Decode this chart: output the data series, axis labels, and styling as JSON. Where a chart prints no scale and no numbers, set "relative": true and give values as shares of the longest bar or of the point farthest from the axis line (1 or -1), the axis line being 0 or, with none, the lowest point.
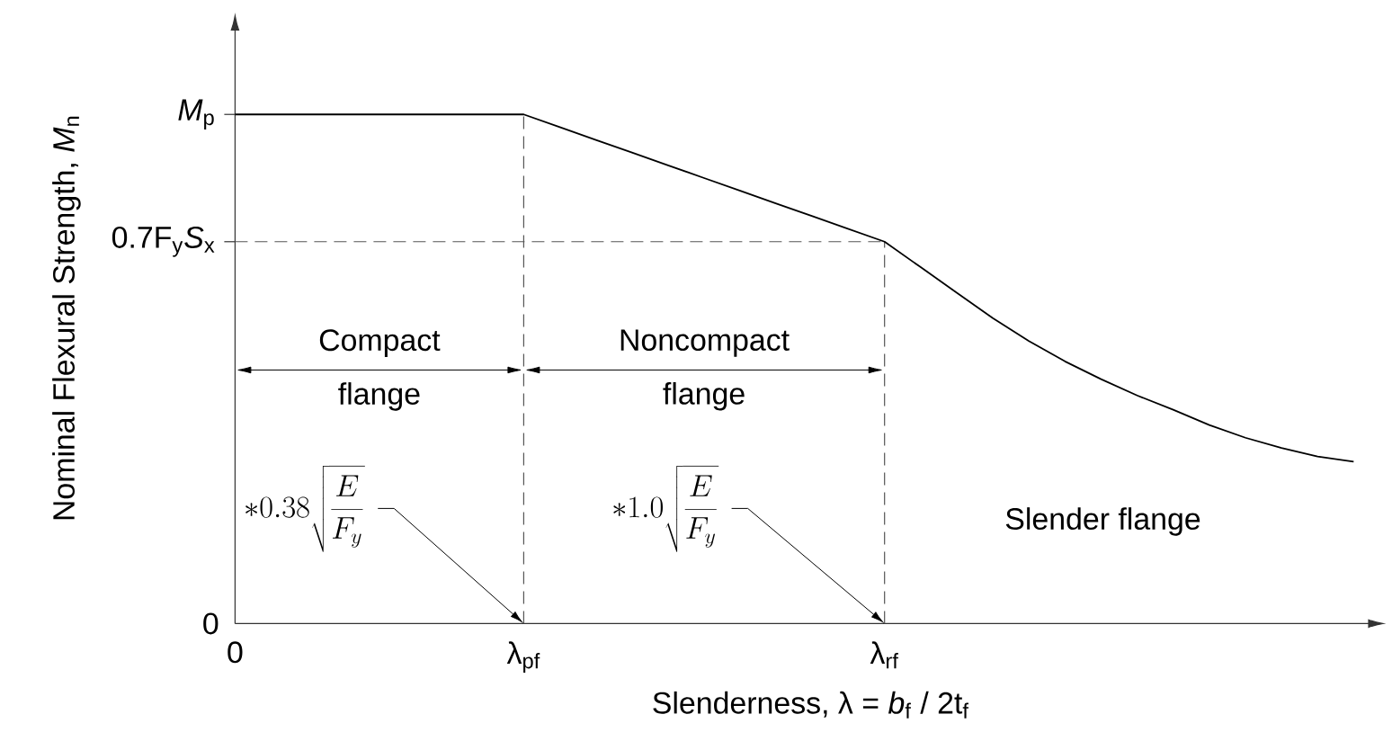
{
  "chart_data": {
    "type": "line",
    "relative": true,
    "xlabel": "Slenderness,  λ = *b*$_{f}$ / 2t$_{f}$",
    "ylabel": "Nominal Flexural Strength, *M*$_{n}$",
    "categories": [
      "0",
      null,
      null,
      null,
      null,
      null,
      null,
      null,
      "λ$_{pf}$",
      null,
      null,
      null,
      null,
      null,
      null,
      null,
      null,
      null,
      "λ$_{rf}$",
      null,
      null,
      null,
      null,
      null,
      null,
      null,
      null,
      null,
      null,
      null,
      null,
      null
    ],
    "series": [
      {
        "color": "#000000",
        "values": [
          1,
          1,
          1,
          1,
          1,
          1,
          1,
          1,
          1,
          0.975,
          0.95,
          0.925,
          0.9,
          0.875,
          0.85,
          0.825,
          0.8,
          0.775,
          0.75,
          0.7,
          0.65,
          0.6,
          0.555,
          0.515,
          0.48,
          0.448,
          0.42,
          0.39,
          0.365,
          0.345,
          0.328,
          0.318
        ]
      }
    ],
    "ref_lines": [
      {
        "axis": "x",
        "value": "λ$_{pf}$",
        "color": "#555555",
        "line_style": "dashed"
      },
      {
        "axis": "x",
        "value": "λ$_{rf}$",
        "color": "#555555",
        "line_style": "dashed"
      },
      {
        "axis": "y",
        "value": 0.75,
        "label": "0.7F$_{y}$*S*$_{x}$",
        "color": "#555555",
        "line_style": "dashed"
      }
    ],
    "annotations": [
      "0",
      "*M*$_{p}$",
      "Compact flange",
      "Noncompact flange",
      "*0.38\\sqrt{\\frac{E}{F_y}}",
      "*1.0\\sqrt{\\frac{E}{F_y}}",
      "Slender flange"
    ],
    "line_style": "solid"
  }
}
